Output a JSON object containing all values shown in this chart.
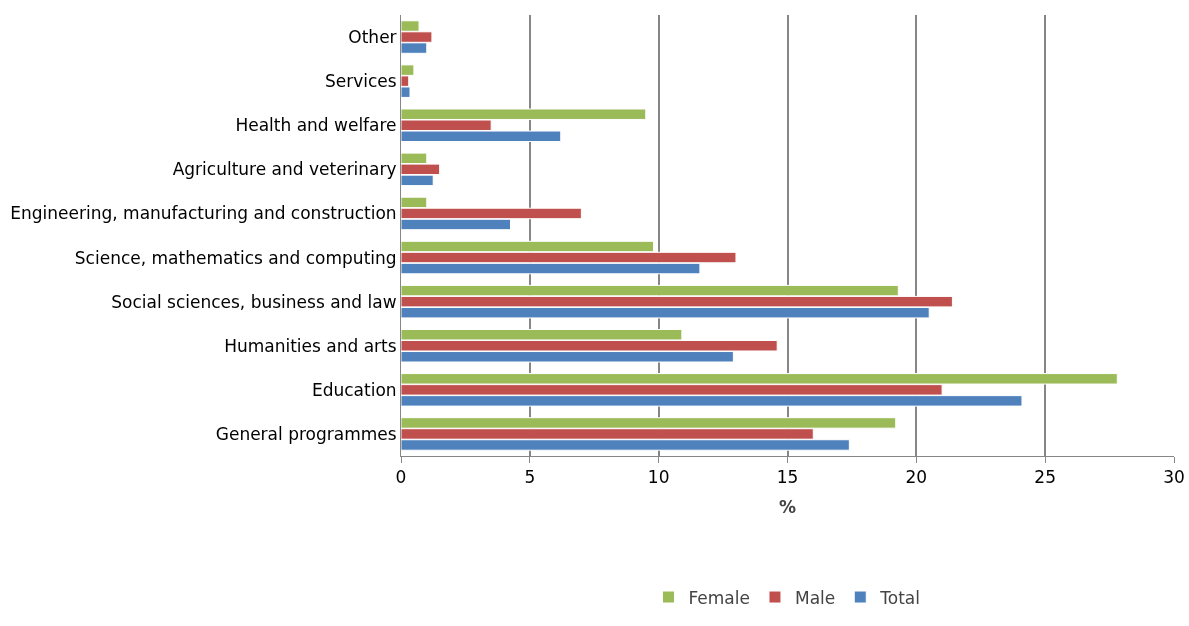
{
  "chart_data": {
    "type": "bar",
    "orientation": "horizontal",
    "xlabel": "%",
    "categories": [
      "Other",
      "Services",
      "Health and welfare",
      "Agriculture and veterinary",
      "Engineering, manufacturing and construction",
      "Science, mathematics and computing",
      "Social sciences, business and law",
      "Humanities and arts",
      "Education",
      "General programmes"
    ],
    "series": [
      {
        "name": "Female",
        "color": "#9bbb59",
        "values": [
          0.7,
          0.5,
          9.5,
          1.0,
          1.0,
          9.8,
          19.3,
          10.9,
          27.8,
          19.2
        ]
      },
      {
        "name": "Male",
        "color": "#c0504d",
        "values": [
          1.2,
          0.3,
          3.5,
          1.5,
          7.0,
          13.0,
          21.4,
          14.6,
          21.0,
          16.0
        ]
      },
      {
        "name": "Total",
        "color": "#4f81bd",
        "values": [
          1.0,
          0.35,
          6.2,
          1.25,
          4.25,
          11.6,
          20.5,
          12.9,
          24.1,
          17.4
        ]
      }
    ],
    "xlim": [
      0,
      30
    ],
    "xticks": [
      0,
      5,
      10,
      15,
      20,
      25,
      30
    ],
    "grid": "x",
    "legend": "bottom"
  }
}
